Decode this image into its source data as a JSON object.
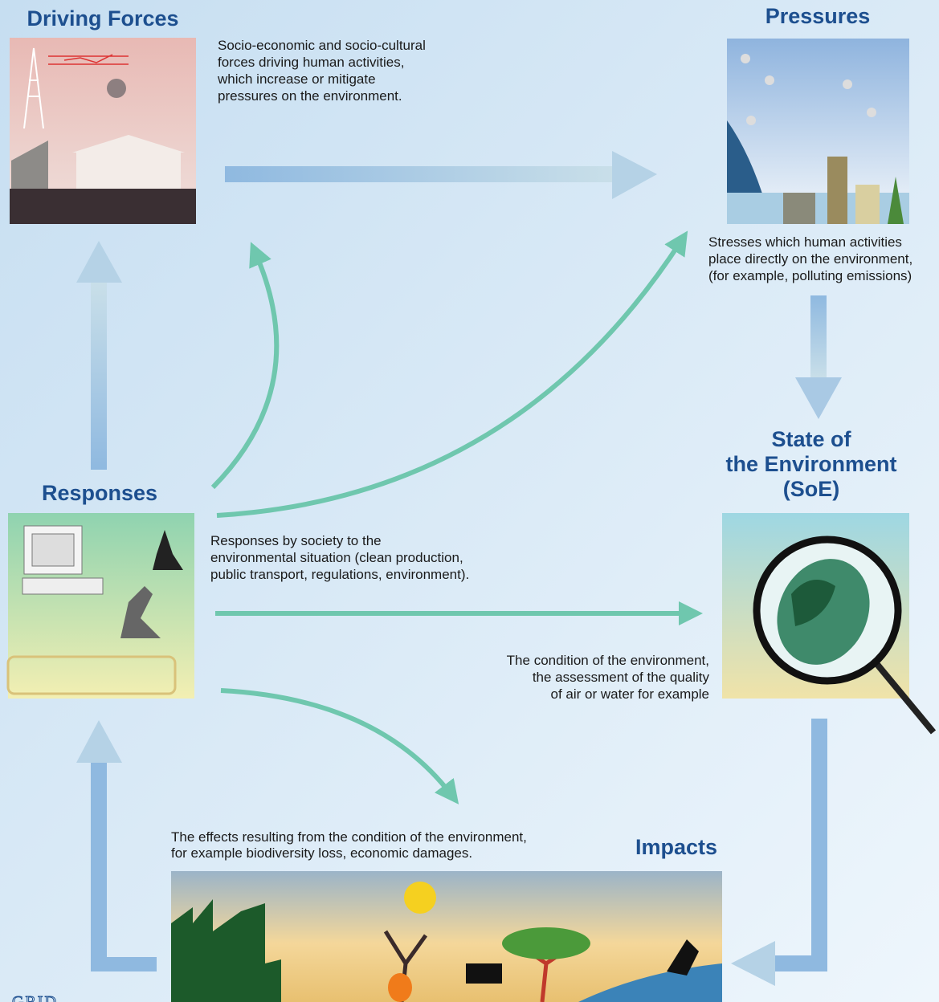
{
  "nodes": [
    {
      "title": [
        "Driving Forces"
      ],
      "description": [
        "Socio-economic and socio-cultural",
        "forces driving human activities,",
        "which increase or mitigate",
        "pressures on the environment."
      ]
    },
    {
      "title": [
        "Pressures"
      ],
      "description": [
        "Stresses which human activities",
        "place directly on the environment,",
        "(for example, polluting emissions)"
      ]
    },
    {
      "title": [
        "State of",
        "the Environment",
        "(SoE)"
      ],
      "description": [
        "The condition of the environment,",
        "the assessment of the quality",
        "of air or water for example"
      ]
    },
    {
      "title": [
        "Impacts"
      ],
      "description": [
        "The effects resulting from the condition of the environment,",
        "for example biodiversity loss, economic damages."
      ]
    },
    {
      "title": [
        "Responses"
      ],
      "description": [
        "Responses by society to the",
        "environmental situation (clean production,",
        "public transport, regulations, environment)."
      ]
    }
  ],
  "logo": "GRID"
}
